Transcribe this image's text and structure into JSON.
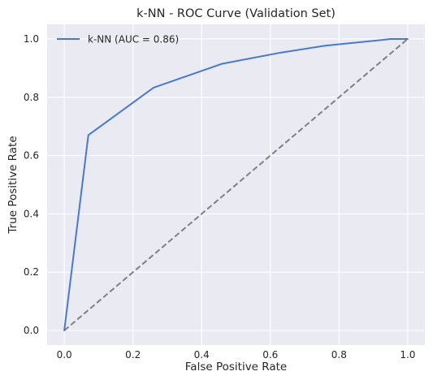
{
  "chart_data": {
    "type": "line",
    "title": "k-NN - ROC Curve (Validation Set)",
    "xlabel": "False Positive Rate",
    "ylabel": "True Positive Rate",
    "xlim": [
      -0.05,
      1.05
    ],
    "ylim": [
      -0.05,
      1.05
    ],
    "xticks": [
      0.0,
      0.2,
      0.4,
      0.6,
      0.8,
      1.0
    ],
    "yticks": [
      0.0,
      0.2,
      0.4,
      0.6,
      0.8,
      1.0
    ],
    "xtick_labels": [
      "0.0",
      "0.2",
      "0.4",
      "0.6",
      "0.8",
      "1.0"
    ],
    "ytick_labels": [
      "0.0",
      "0.2",
      "0.4",
      "0.6",
      "0.8",
      "1.0"
    ],
    "grid": true,
    "legend": {
      "placement": "upper left",
      "entries": [
        "k-NN (AUC = 0.86)"
      ]
    },
    "series": [
      {
        "name": "k-NN (AUC = 0.86)",
        "style": "solid",
        "color": "#4878d0",
        "x": [
          0.0,
          0.07,
          0.26,
          0.46,
          0.63,
          0.76,
          0.93,
          0.95,
          1.0
        ],
        "y": [
          0.0,
          0.67,
          0.833,
          0.915,
          0.953,
          0.977,
          0.997,
          1.0,
          1.0
        ]
      },
      {
        "style": "dashed",
        "color": "#808080",
        "x": [
          0.0,
          1.0
        ],
        "y": [
          0.0,
          1.0
        ]
      }
    ],
    "colors": {
      "plot_background": "#eaeaf2",
      "grid": "#ffffff",
      "text": "#262626"
    }
  }
}
